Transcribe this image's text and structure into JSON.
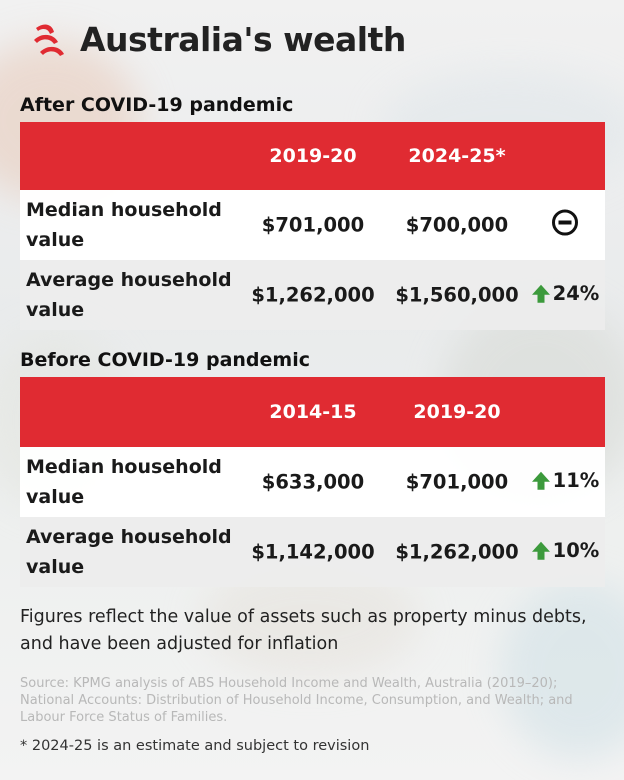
{
  "header": {
    "title": "Australia's wealth"
  },
  "colors": {
    "accent": "#e02b32",
    "up": "#3c9a3c",
    "neutral": "#111111"
  },
  "sections": [
    {
      "title": "After COVID-19 pandemic",
      "columns": [
        "2019-20",
        "2024-25*"
      ],
      "rows": [
        {
          "label": "Median household value",
          "v1": "$701,000",
          "v2": "$700,000",
          "change": "",
          "change_icon": "minus-circle-icon"
        },
        {
          "label": "Average household value",
          "v1": "$1,262,000",
          "v2": "$1,560,000",
          "change": "24%",
          "change_icon": "arrow-up-icon"
        }
      ]
    },
    {
      "title": "Before COVID-19 pandemic",
      "columns": [
        "2014-15",
        "2019-20"
      ],
      "rows": [
        {
          "label": "Median household value",
          "v1": "$633,000",
          "v2": "$701,000",
          "change": "11%",
          "change_icon": "arrow-up-icon"
        },
        {
          "label": "Average household value",
          "v1": "$1,142,000",
          "v2": "$1,262,000",
          "change": "10%",
          "change_icon": "arrow-up-icon"
        }
      ]
    }
  ],
  "footnotes": {
    "main": "Figures reflect the value of assets such as property minus debts, and have been adjusted for inflation",
    "source": "Source: KPMG analysis of ABS Household Income and Wealth, Australia (2019–20); National Accounts: Distribution of Household Income, Consumption, and Wealth; and Labour Force Status of Families.",
    "estimate": "* 2024-25 is an estimate and subject to revision"
  }
}
